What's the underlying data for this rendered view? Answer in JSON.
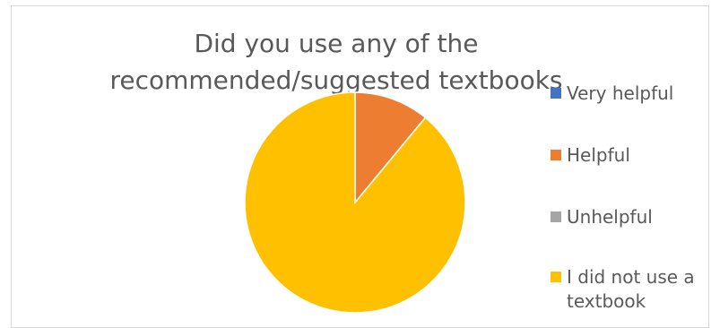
{
  "chart_data": {
    "type": "pie",
    "title": "Did you use any of the recommended/suggested textbooks",
    "title_lines": [
      "Did you use any of the",
      "recommended/suggested textbooks"
    ],
    "categories": [
      "Very helpful",
      "Helpful",
      "Unhelpful",
      "I did not use a textbook"
    ],
    "values": [
      0,
      11,
      0,
      89
    ],
    "colors": [
      "#4472c4",
      "#ed7d31",
      "#a5a5a5",
      "#ffc000"
    ],
    "legend": {
      "position": "right",
      "items": [
        {
          "label": "Very helpful"
        },
        {
          "label": "Helpful"
        },
        {
          "label": "Unhelpful"
        },
        {
          "label_lines": [
            "I did not use a",
            "textbook"
          ]
        }
      ]
    }
  }
}
